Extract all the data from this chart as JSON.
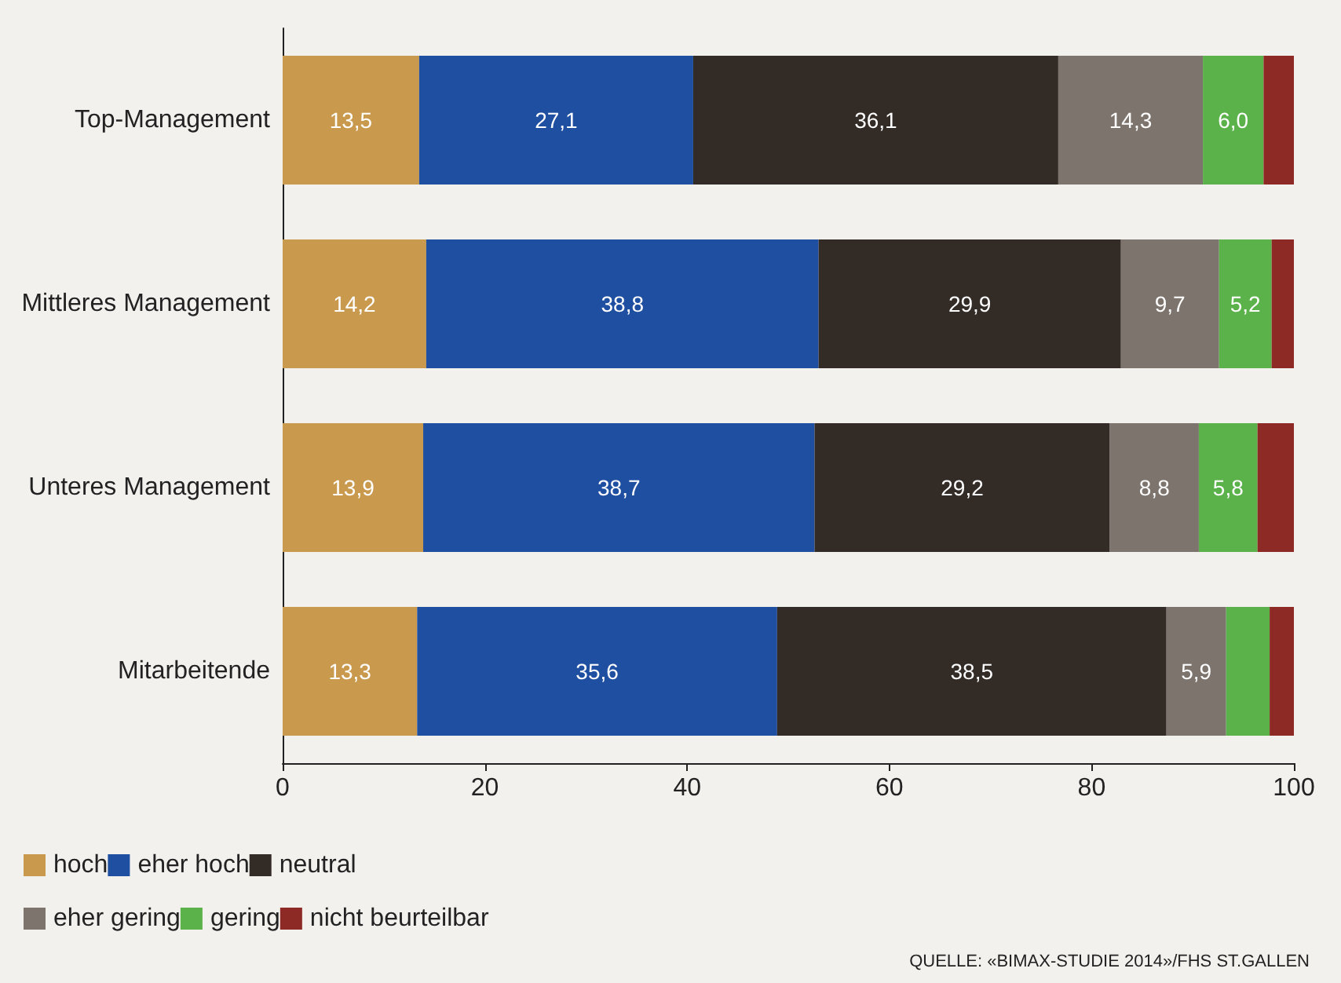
{
  "chart_data": {
    "type": "bar",
    "orientation": "horizontal",
    "stacked": true,
    "categories": [
      "Top-Management",
      "Mittleres Management",
      "Unteres Management",
      "Mitarbeitende"
    ],
    "series": [
      {
        "name": "hoch",
        "color": "#c99a4e",
        "values": [
          13.5,
          14.2,
          13.9,
          13.3
        ],
        "value_labels": [
          "13,5",
          "14,2",
          "13,9",
          "13,3"
        ]
      },
      {
        "name": "eher hoch",
        "color": "#1f4fa0",
        "values": [
          27.1,
          38.8,
          38.7,
          35.6
        ],
        "value_labels": [
          "27,1",
          "38,8",
          "38,7",
          "35,6"
        ]
      },
      {
        "name": "neutral",
        "color": "#332b26",
        "values": [
          36.1,
          29.9,
          29.2,
          38.5
        ],
        "value_labels": [
          "36,1",
          "29,9",
          "29,2",
          "38,5"
        ]
      },
      {
        "name": "eher gering",
        "color": "#7d746e",
        "values": [
          14.3,
          9.7,
          8.8,
          5.9
        ],
        "value_labels": [
          "14,3",
          "9,7",
          "8,8",
          "5,9"
        ]
      },
      {
        "name": "gering",
        "color": "#5bb14a",
        "values": [
          6.0,
          5.2,
          5.8,
          4.3
        ],
        "value_labels": [
          "6,0",
          "5,2",
          "5,8",
          null
        ]
      },
      {
        "name": "nicht beurteilbar",
        "color": "#8e2a26",
        "values": [
          3.0,
          2.2,
          3.6,
          2.4
        ]
      }
    ],
    "xlim": [
      0,
      100
    ],
    "xticks": [
      0,
      20,
      40,
      60,
      80,
      100
    ],
    "grid": false,
    "legend": "bottom",
    "annotations": [
      "QUELLE: «BIMAX-STUDIE 2014»/FHS ST.GALLEN"
    ]
  }
}
